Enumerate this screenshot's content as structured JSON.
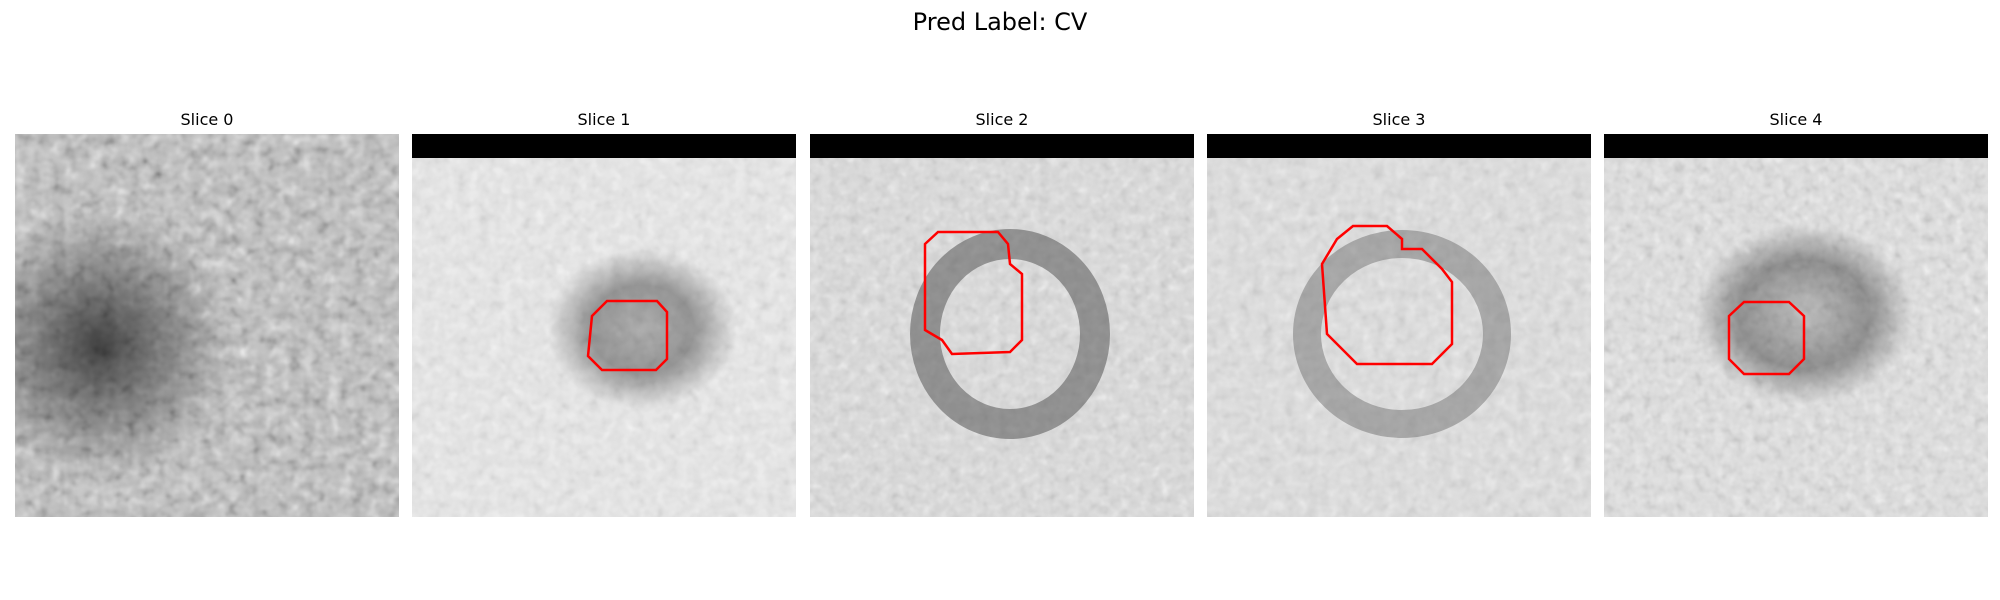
{
  "title": "Pred Label: CV",
  "colors": {
    "contour": "#ff0000",
    "band": "#000000",
    "background": "#ffffff"
  },
  "slices": [
    {
      "label": "Slice 0",
      "has_black_band": false,
      "contour": false
    },
    {
      "label": "Slice 1",
      "has_black_band": true,
      "contour": true
    },
    {
      "label": "Slice 2",
      "has_black_band": true,
      "contour": true
    },
    {
      "label": "Slice 3",
      "has_black_band": true,
      "contour": true
    },
    {
      "label": "Slice 4",
      "has_black_band": true,
      "contour": true
    }
  ]
}
